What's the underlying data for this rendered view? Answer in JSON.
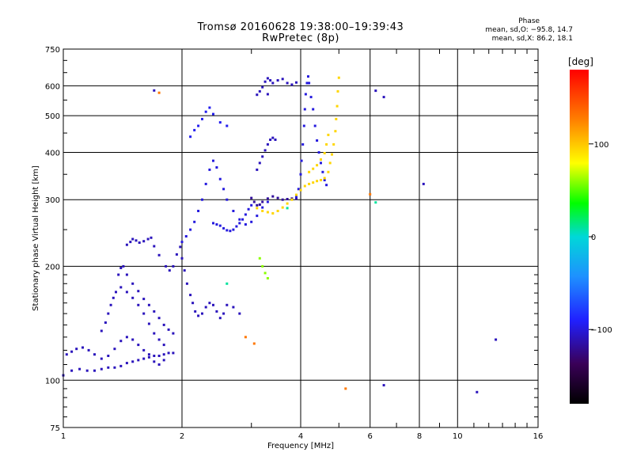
{
  "chart_data": {
    "type": "scatter",
    "title": "Tromsø 20160628 19:38:00–19:39:43",
    "subtitle": "RwPretec (8p)",
    "xlabel": "Frequency [MHz]",
    "ylabel": "Stationary phase Virtual Height [km]",
    "x_scale": "log",
    "y_scale": "log",
    "xlim": [
      1,
      16
    ],
    "ylim": [
      75,
      750
    ],
    "x_ticks": [
      "1",
      "2",
      "4",
      "6",
      "8",
      "10",
      "16"
    ],
    "y_ticks": [
      "75",
      "100",
      "200",
      "300",
      "400",
      "500",
      "600",
      "750"
    ],
    "grid": true,
    "phase_stats": {
      "header": "Phase",
      "line_o": "mean, sd,O: −95.8, 14.7",
      "line_x": "mean, sd,X: 86.2, 18.1"
    },
    "colorbar": {
      "label": "[deg]",
      "ticks": [
        "100",
        "0",
        "−100"
      ],
      "tick_values": [
        100,
        0,
        -100
      ],
      "range": [
        -180,
        180
      ]
    },
    "series": [
      {
        "color_deg": -110,
        "points": [
          [
            1.0,
            103
          ],
          [
            1.05,
            106
          ],
          [
            1.1,
            107
          ],
          [
            1.15,
            106
          ],
          [
            1.2,
            106
          ],
          [
            1.25,
            107
          ],
          [
            1.3,
            108
          ],
          [
            1.35,
            108
          ],
          [
            1.4,
            109
          ],
          [
            1.45,
            111
          ],
          [
            1.5,
            112
          ],
          [
            1.55,
            113
          ],
          [
            1.6,
            114
          ],
          [
            1.65,
            115
          ],
          [
            1.7,
            116
          ],
          [
            1.75,
            116
          ],
          [
            1.8,
            117
          ],
          [
            1.85,
            118
          ],
          [
            1.9,
            118
          ]
        ]
      },
      {
        "color_deg": -110,
        "points": [
          [
            1.02,
            117
          ],
          [
            1.05,
            119
          ],
          [
            1.08,
            121
          ],
          [
            1.12,
            122
          ],
          [
            1.16,
            120
          ],
          [
            1.2,
            117
          ],
          [
            1.25,
            114
          ],
          [
            1.3,
            116
          ],
          [
            1.35,
            121
          ],
          [
            1.4,
            127
          ],
          [
            1.45,
            130
          ],
          [
            1.5,
            128
          ],
          [
            1.55,
            124
          ],
          [
            1.6,
            120
          ],
          [
            1.65,
            117
          ],
          [
            1.7,
            112
          ],
          [
            1.75,
            110
          ],
          [
            1.8,
            113
          ]
        ]
      },
      {
        "color_deg": -110,
        "points": [
          [
            1.25,
            135
          ],
          [
            1.28,
            142
          ],
          [
            1.3,
            150
          ],
          [
            1.32,
            158
          ],
          [
            1.34,
            165
          ],
          [
            1.36,
            171
          ],
          [
            1.4,
            176
          ],
          [
            1.45,
            171
          ],
          [
            1.5,
            165
          ],
          [
            1.55,
            158
          ],
          [
            1.6,
            150
          ],
          [
            1.65,
            141
          ],
          [
            1.7,
            133
          ],
          [
            1.75,
            128
          ],
          [
            1.8,
            124
          ]
        ]
      },
      {
        "color_deg": -110,
        "points": [
          [
            1.38,
            190
          ],
          [
            1.4,
            198
          ],
          [
            1.42,
            200
          ],
          [
            1.45,
            190
          ],
          [
            1.5,
            180
          ],
          [
            1.55,
            172
          ],
          [
            1.6,
            164
          ],
          [
            1.65,
            158
          ],
          [
            1.7,
            152
          ],
          [
            1.75,
            146
          ],
          [
            1.8,
            140
          ],
          [
            1.85,
            136
          ],
          [
            1.9,
            133
          ]
        ]
      },
      {
        "color_deg": -110,
        "points": [
          [
            1.45,
            228
          ],
          [
            1.48,
            232
          ],
          [
            1.5,
            236
          ],
          [
            1.53,
            234
          ],
          [
            1.56,
            231
          ],
          [
            1.6,
            233
          ],
          [
            1.64,
            236
          ],
          [
            1.67,
            238
          ],
          [
            1.7,
            226
          ],
          [
            1.75,
            214
          ]
        ]
      },
      {
        "color_deg": -110,
        "points": [
          [
            1.82,
            200
          ],
          [
            1.86,
            195
          ],
          [
            1.9,
            200
          ],
          [
            1.94,
            215
          ],
          [
            1.98,
            225
          ],
          [
            2.0,
            210
          ],
          [
            2.03,
            195
          ],
          [
            2.06,
            180
          ],
          [
            2.1,
            168
          ],
          [
            2.13,
            160
          ],
          [
            2.16,
            152
          ],
          [
            2.2,
            148
          ],
          [
            2.25,
            150
          ],
          [
            2.3,
            156
          ],
          [
            2.35,
            160
          ],
          [
            2.4,
            158
          ],
          [
            2.45,
            152
          ],
          [
            2.5,
            146
          ],
          [
            2.55,
            150
          ],
          [
            2.6,
            158
          ],
          [
            2.7,
            156
          ],
          [
            2.8,
            150
          ]
        ]
      },
      {
        "color_deg": -100,
        "points": [
          [
            2.0,
            232
          ],
          [
            2.05,
            240
          ],
          [
            2.1,
            250
          ],
          [
            2.15,
            262
          ],
          [
            2.2,
            280
          ],
          [
            2.25,
            300
          ],
          [
            2.3,
            330
          ],
          [
            2.35,
            360
          ],
          [
            2.4,
            380
          ],
          [
            2.45,
            365
          ],
          [
            2.5,
            340
          ],
          [
            2.55,
            320
          ],
          [
            2.6,
            300
          ],
          [
            2.7,
            280
          ],
          [
            2.8,
            266
          ],
          [
            2.9,
            258
          ],
          [
            3.0,
            262
          ],
          [
            3.1,
            272
          ],
          [
            3.2,
            286
          ],
          [
            3.3,
            296
          ]
        ]
      },
      {
        "color_deg": -100,
        "points": [
          [
            2.4,
            260
          ],
          [
            2.45,
            258
          ],
          [
            2.5,
            256
          ],
          [
            2.55,
            252
          ],
          [
            2.6,
            249
          ],
          [
            2.65,
            248
          ],
          [
            2.7,
            250
          ],
          [
            2.75,
            255
          ],
          [
            2.8,
            260
          ],
          [
            2.85,
            266
          ],
          [
            2.9,
            274
          ],
          [
            2.95,
            283
          ],
          [
            3.0,
            290
          ]
        ]
      },
      {
        "color_deg": -95,
        "points": [
          [
            2.1,
            440
          ],
          [
            2.15,
            458
          ],
          [
            2.2,
            470
          ],
          [
            2.25,
            490
          ],
          [
            2.3,
            512
          ],
          [
            2.35,
            525
          ],
          [
            2.4,
            505
          ],
          [
            2.5,
            480
          ],
          [
            2.6,
            470
          ]
        ]
      },
      {
        "color_deg": -120,
        "points": [
          [
            3.0,
            303
          ],
          [
            3.05,
            296
          ],
          [
            3.1,
            290
          ],
          [
            3.15,
            291
          ],
          [
            3.2,
            296
          ],
          [
            3.3,
            302
          ],
          [
            3.4,
            306
          ],
          [
            3.5,
            303
          ],
          [
            3.6,
            300
          ],
          [
            3.7,
            301
          ],
          [
            3.8,
            302
          ],
          [
            3.9,
            302
          ]
        ]
      },
      {
        "color_deg": -110,
        "points": [
          [
            3.1,
            360
          ],
          [
            3.15,
            375
          ],
          [
            3.2,
            390
          ],
          [
            3.25,
            405
          ],
          [
            3.3,
            420
          ],
          [
            3.35,
            432
          ],
          [
            3.4,
            437
          ],
          [
            3.45,
            432
          ]
        ]
      },
      {
        "color_deg": -110,
        "points": [
          [
            3.1,
            568
          ],
          [
            3.15,
            580
          ],
          [
            3.2,
            595
          ],
          [
            3.25,
            615
          ],
          [
            3.3,
            628
          ],
          [
            3.35,
            620
          ],
          [
            3.4,
            610
          ],
          [
            3.5,
            620
          ],
          [
            3.6,
            625
          ],
          [
            3.7,
            610
          ],
          [
            3.8,
            604
          ],
          [
            3.9,
            612
          ]
        ]
      },
      {
        "color_deg": -100,
        "points": [
          [
            3.9,
            305
          ],
          [
            3.95,
            320
          ],
          [
            4.0,
            350
          ],
          [
            4.02,
            380
          ],
          [
            4.05,
            420
          ],
          [
            4.08,
            470
          ],
          [
            4.1,
            520
          ],
          [
            4.12,
            570
          ],
          [
            4.15,
            610
          ],
          [
            4.18,
            635
          ],
          [
            4.2,
            610
          ],
          [
            4.25,
            560
          ],
          [
            4.3,
            520
          ],
          [
            4.35,
            470
          ],
          [
            4.4,
            430
          ],
          [
            4.45,
            400
          ],
          [
            4.5,
            375
          ],
          [
            4.55,
            355
          ],
          [
            4.6,
            338
          ],
          [
            4.65,
            328
          ]
        ]
      },
      {
        "color_deg": 95,
        "points": [
          [
            3.1,
            285
          ],
          [
            3.2,
            280
          ],
          [
            3.3,
            278
          ],
          [
            3.4,
            276
          ],
          [
            3.5,
            280
          ],
          [
            3.6,
            286
          ],
          [
            3.7,
            293
          ],
          [
            3.8,
            300
          ],
          [
            3.9,
            309
          ],
          [
            4.0,
            318
          ],
          [
            4.1,
            326
          ],
          [
            4.2,
            330
          ],
          [
            4.3,
            333
          ],
          [
            4.4,
            336
          ],
          [
            4.5,
            338
          ],
          [
            4.6,
            342
          ],
          [
            4.7,
            355
          ],
          [
            4.75,
            375
          ],
          [
            4.8,
            395
          ],
          [
            4.85,
            420
          ],
          [
            4.9,
            455
          ],
          [
            4.92,
            490
          ],
          [
            4.95,
            530
          ],
          [
            4.97,
            580
          ],
          [
            5.0,
            630
          ]
        ]
      },
      {
        "color_deg": 95,
        "points": [
          [
            4.2,
            355
          ],
          [
            4.3,
            362
          ],
          [
            4.4,
            370
          ],
          [
            4.5,
            383
          ],
          [
            4.6,
            398
          ],
          [
            4.65,
            420
          ],
          [
            4.7,
            445
          ]
        ]
      },
      {
        "color_deg": 60,
        "points": [
          [
            3.15,
            210
          ],
          [
            3.2,
            200
          ],
          [
            3.25,
            192
          ],
          [
            3.3,
            186
          ]
        ]
      },
      {
        "color_deg": -110,
        "points": [
          [
            1.7,
            583
          ],
          [
            3.3,
            570
          ],
          [
            6.2,
            582
          ],
          [
            6.5,
            560
          ],
          [
            8.2,
            330
          ],
          [
            12.5,
            128
          ],
          [
            11.2,
            93
          ],
          [
            6.5,
            97
          ]
        ]
      },
      {
        "color_deg": 130,
        "points": [
          [
            1.75,
            575
          ],
          [
            5.2,
            95
          ],
          [
            6.0,
            310
          ],
          [
            3.05,
            125
          ],
          [
            2.9,
            130
          ]
        ]
      },
      {
        "color_deg": 10,
        "points": [
          [
            2.6,
            180
          ],
          [
            3.7,
            285
          ],
          [
            6.2,
            295
          ]
        ]
      }
    ]
  }
}
